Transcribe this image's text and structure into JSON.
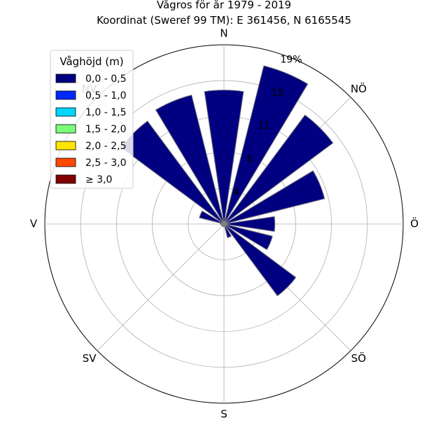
{
  "chart_data": {
    "type": "windrose",
    "title": "Vågros för år 1979 - 2019",
    "subtitle": "Koordinat (Sweref 99 TM): E 361456, N 6165545",
    "direction_labels": [
      "N",
      "NÖ",
      "Ö",
      "SÖ",
      "S",
      "SV",
      "V",
      "NV"
    ],
    "radial_ticks": [
      "4",
      "8",
      "11",
      "15",
      "19%"
    ],
    "radial_tick_values": [
      3.8,
      7.6,
      11.4,
      15.2,
      19.0
    ],
    "rmax": 19.0,
    "grid": true,
    "legend_placement": "top-left",
    "legend": {
      "title": "Våghöjd (m)",
      "entries": [
        {
          "label": "0,0 - 0,5",
          "color": "#000080"
        },
        {
          "label": "0,5 - 1,0",
          "color": "#0028ff"
        },
        {
          "label": "1,0 - 1,5",
          "color": "#00d4ff"
        },
        {
          "label": "1,5 - 2,0",
          "color": "#7dff7a"
        },
        {
          "label": "2,0 - 2,5",
          "color": "#ffe600"
        },
        {
          "label": "2,5 - 3,0",
          "color": "#ff4800"
        },
        {
          "label": "≥ 3,0",
          "color": "#800000"
        }
      ]
    },
    "sectors": [
      {
        "direction_deg": 0,
        "value": 14.2
      },
      {
        "direction_deg": 22.5,
        "value": 17.3
      },
      {
        "direction_deg": 45,
        "value": 14.4
      },
      {
        "direction_deg": 67.5,
        "value": 11.0
      },
      {
        "direction_deg": 90,
        "value": 5.4
      },
      {
        "direction_deg": 112.5,
        "value": 5.3
      },
      {
        "direction_deg": 135,
        "value": 9.5
      },
      {
        "direction_deg": 157.5,
        "value": 1.5
      },
      {
        "direction_deg": 180,
        "value": 0.3
      },
      {
        "direction_deg": 202.5,
        "value": 0.3
      },
      {
        "direction_deg": 225,
        "value": 0.3
      },
      {
        "direction_deg": 247.5,
        "value": 0.3
      },
      {
        "direction_deg": 270,
        "value": 0.4
      },
      {
        "direction_deg": 292.5,
        "value": 2.7
      },
      {
        "direction_deg": 315,
        "value": 13.6
      },
      {
        "direction_deg": 337.5,
        "value": 14.1
      }
    ]
  }
}
